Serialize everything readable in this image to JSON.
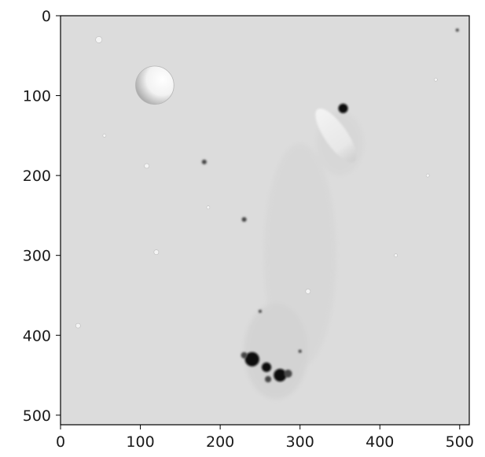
{
  "figure": {
    "kind": "grayscale image plot",
    "xlim": [
      0,
      512
    ],
    "ylim": [
      512,
      0
    ],
    "x_ticks": [
      {
        "value": 0,
        "label": "0"
      },
      {
        "value": 100,
        "label": "100"
      },
      {
        "value": 200,
        "label": "200"
      },
      {
        "value": 300,
        "label": "300"
      },
      {
        "value": 400,
        "label": "400"
      },
      {
        "value": 500,
        "label": "500"
      }
    ],
    "y_ticks": [
      {
        "value": 0,
        "label": "0"
      },
      {
        "value": 100,
        "label": "100"
      },
      {
        "value": 200,
        "label": "200"
      },
      {
        "value": 300,
        "label": "300"
      },
      {
        "value": 400,
        "label": "400"
      },
      {
        "value": 500,
        "label": "500"
      }
    ],
    "background_gray": "#dcdcdc",
    "features": [
      {
        "type": "crater",
        "cx": 118,
        "cy": 87,
        "r": 24
      },
      {
        "type": "streak",
        "cx": 345,
        "cy": 150,
        "rx": 40,
        "ry": 14,
        "angle": 55
      },
      {
        "type": "dark-spot",
        "cx": 354,
        "cy": 116,
        "r": 6
      },
      {
        "type": "dark-spot",
        "cx": 240,
        "cy": 430,
        "r": 9
      },
      {
        "type": "dark-spot",
        "cx": 258,
        "cy": 440,
        "r": 6
      },
      {
        "type": "dark-spot",
        "cx": 275,
        "cy": 450,
        "r": 8
      },
      {
        "type": "dark-spot",
        "cx": 285,
        "cy": 448,
        "r": 5
      },
      {
        "type": "dark-spot",
        "cx": 230,
        "cy": 425,
        "r": 4
      },
      {
        "type": "dark-spot",
        "cx": 260,
        "cy": 455,
        "r": 4
      },
      {
        "type": "dark-spot",
        "cx": 180,
        "cy": 183,
        "r": 3
      },
      {
        "type": "dark-spot",
        "cx": 497,
        "cy": 18,
        "r": 2
      },
      {
        "type": "dark-spot",
        "cx": 230,
        "cy": 255,
        "r": 3
      },
      {
        "type": "dark-spot",
        "cx": 250,
        "cy": 370,
        "r": 2
      },
      {
        "type": "dark-spot",
        "cx": 300,
        "cy": 420,
        "r": 2
      },
      {
        "type": "light-spot",
        "cx": 48,
        "cy": 30,
        "r": 4
      },
      {
        "type": "light-spot",
        "cx": 108,
        "cy": 188,
        "r": 3
      },
      {
        "type": "light-spot",
        "cx": 120,
        "cy": 296,
        "r": 3
      },
      {
        "type": "light-spot",
        "cx": 22,
        "cy": 388,
        "r": 3
      },
      {
        "type": "light-spot",
        "cx": 310,
        "cy": 345,
        "r": 3
      },
      {
        "type": "light-spot",
        "cx": 470,
        "cy": 80,
        "r": 2
      },
      {
        "type": "light-spot",
        "cx": 460,
        "cy": 200,
        "r": 2
      },
      {
        "type": "light-spot",
        "cx": 55,
        "cy": 150,
        "r": 2
      },
      {
        "type": "light-spot",
        "cx": 185,
        "cy": 240,
        "r": 2
      },
      {
        "type": "light-spot",
        "cx": 420,
        "cy": 300,
        "r": 2
      }
    ]
  }
}
